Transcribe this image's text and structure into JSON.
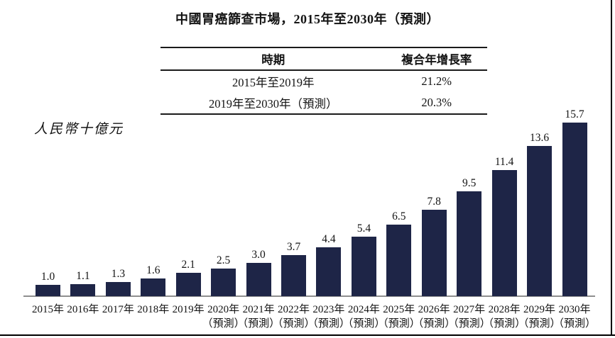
{
  "title": "中國胃癌篩查市場，2015年至2030年（預測）",
  "unit_label": "人民幣十億元",
  "cagr_table": {
    "col_headers": [
      "時期",
      "複合年增長率"
    ],
    "rows": [
      [
        "2015年至2019年",
        "21.2%"
      ],
      [
        "2019年至2030年（預測）",
        "20.3%"
      ]
    ]
  },
  "chart_data": {
    "type": "bar",
    "title": "中國胃癌篩查市場，2015年至2030年（預測）",
    "ylabel": "人民幣十億元",
    "categories": [
      "2015年",
      "2016年",
      "2017年",
      "2018年",
      "2019年",
      "2020年",
      "2021年",
      "2022年",
      "2023年",
      "2024年",
      "2025年",
      "2026年",
      "2027年",
      "2028年",
      "2029年",
      "2030年"
    ],
    "values": [
      1.0,
      1.1,
      1.3,
      1.6,
      2.1,
      2.5,
      3.0,
      3.7,
      4.4,
      5.4,
      6.5,
      7.8,
      9.5,
      11.4,
      13.6,
      15.7
    ],
    "forecast_from_index": 5,
    "forecast_suffix": "（預測）",
    "value_label_decimals": 1,
    "bar_color": "#1e2547",
    "axis_color": "#8f8f8f",
    "ylim": [
      0,
      16
    ],
    "grid": false,
    "legend": false
  }
}
